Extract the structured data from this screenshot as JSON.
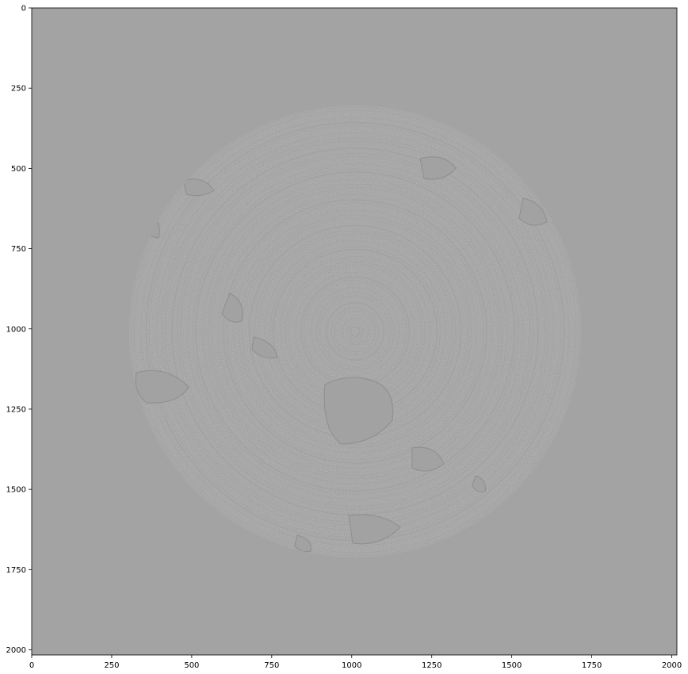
{
  "figure": {
    "type": "image",
    "x_ticks": [
      "0",
      "250",
      "500",
      "750",
      "1000",
      "1250",
      "1500",
      "1750",
      "2000"
    ],
    "y_ticks": [
      "0",
      "250",
      "500",
      "750",
      "1000",
      "1250",
      "1500",
      "1750",
      "2000"
    ],
    "background_color": "#a3a3a3",
    "disc_color": "#b4b4b4"
  },
  "chart_data": {
    "type": "heatmap",
    "title": "",
    "xlabel": "",
    "ylabel": "",
    "xlim": [
      0,
      2016
    ],
    "ylim": [
      2016,
      0
    ],
    "x_tick_values": [
      0,
      250,
      500,
      750,
      1000,
      1250,
      1500,
      1750,
      2000
    ],
    "y_tick_values": [
      0,
      250,
      500,
      750,
      1000,
      1250,
      1500,
      1750,
      2000
    ],
    "colormap": "gray",
    "content": "grayscale circular cross-section image, disc centered near (1008, 1008) with radius about 700"
  }
}
